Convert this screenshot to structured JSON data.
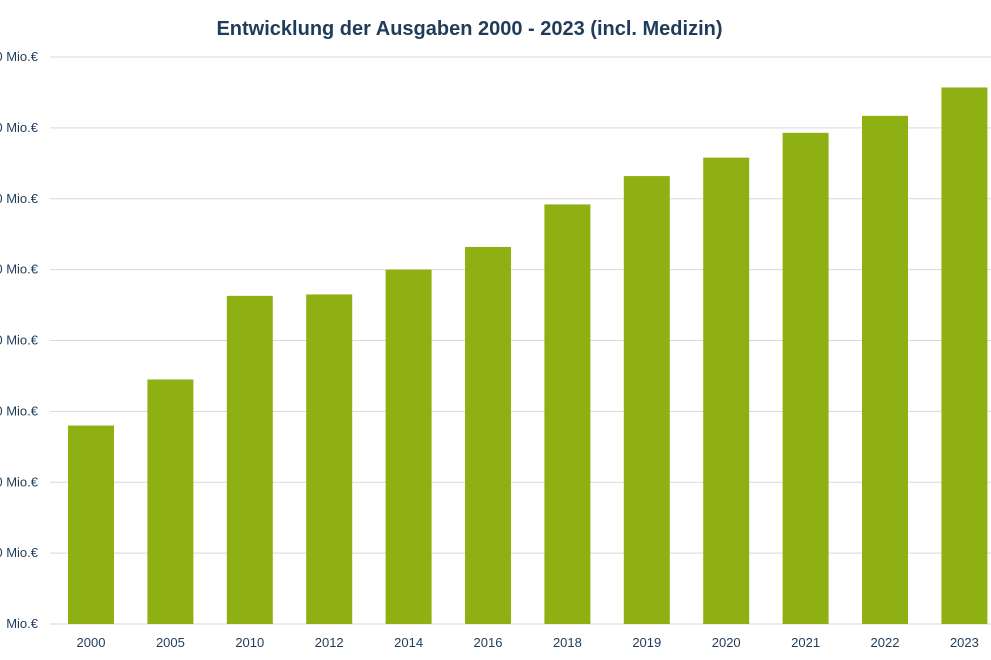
{
  "chart_data": {
    "type": "bar",
    "title": "Entwicklung der Ausgaben 2000 - 2023 (incl. Medizin)",
    "categories": [
      "2000",
      "2005",
      "2010",
      "2012",
      "2014",
      "2016",
      "2018",
      "2019",
      "2020",
      "2021",
      "2022",
      "2023"
    ],
    "values": [
      2.8,
      3.45,
      4.63,
      4.65,
      5.0,
      5.32,
      5.92,
      6.32,
      6.58,
      6.93,
      7.17,
      7.57
    ],
    "ytick_labels": [
      "Mio.€",
      "0 Mio.€",
      "0 Mio.€",
      "0 Mio.€",
      "0 Mio.€",
      "0 Mio.€",
      "0 Mio.€",
      "0 Mio.€",
      "0 Mio.€"
    ],
    "ylim": [
      0,
      8
    ],
    "grid": true,
    "legend": "none",
    "bar_color": "#8fb012",
    "grid_color": "#d9d9d9",
    "text_color": "#1f3c5a"
  }
}
